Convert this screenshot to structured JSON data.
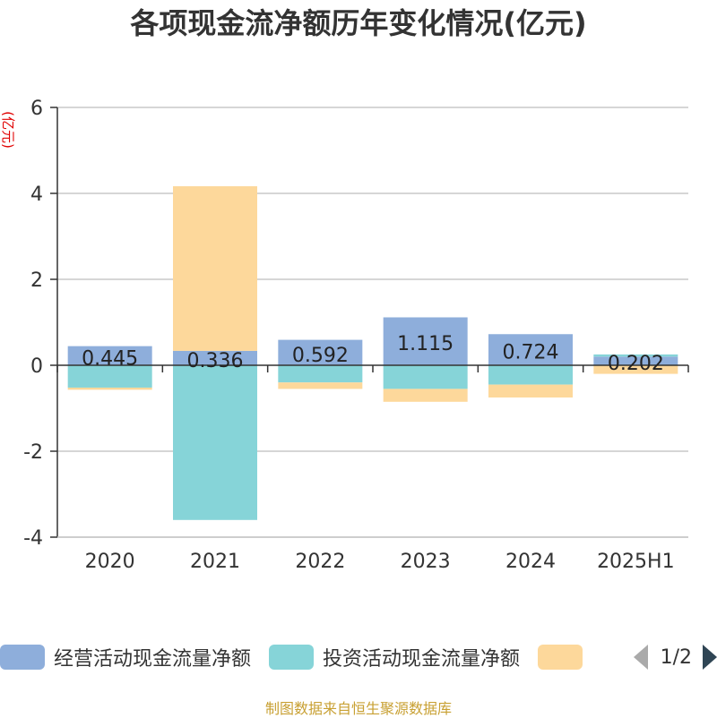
{
  "title": "各项现金流净额历年变化情况(亿元)",
  "source": "制图数据来自恒生聚源数据库",
  "legend_page": "1/2",
  "chart_data": {
    "type": "bar",
    "stacked": true,
    "ylabel": "(亿元)",
    "ylim": [
      -4,
      6
    ],
    "yticks": [
      -4,
      -2,
      0,
      2,
      4,
      6
    ],
    "grid": true,
    "legend_position": "bottom",
    "categories": [
      "2020",
      "2021",
      "2022",
      "2023",
      "2024",
      "2025H1"
    ],
    "series": [
      {
        "name": "经营活动现金流量净额",
        "color": "#8eaedb",
        "values": [
          0.445,
          0.336,
          0.592,
          1.115,
          0.724,
          0.202
        ],
        "labels": [
          "0.445",
          "0.336",
          "0.592",
          "1.115",
          "0.724",
          "0.202"
        ]
      },
      {
        "name": "投资活动现金流量净额",
        "color": "#86d4d8",
        "values": [
          -0.52,
          -3.6,
          -0.4,
          -0.55,
          -0.45,
          0.05
        ]
      },
      {
        "name": "",
        "color": "#fdd89b",
        "values": [
          -0.05,
          3.83,
          -0.15,
          -0.3,
          -0.3,
          -0.2
        ]
      }
    ]
  }
}
